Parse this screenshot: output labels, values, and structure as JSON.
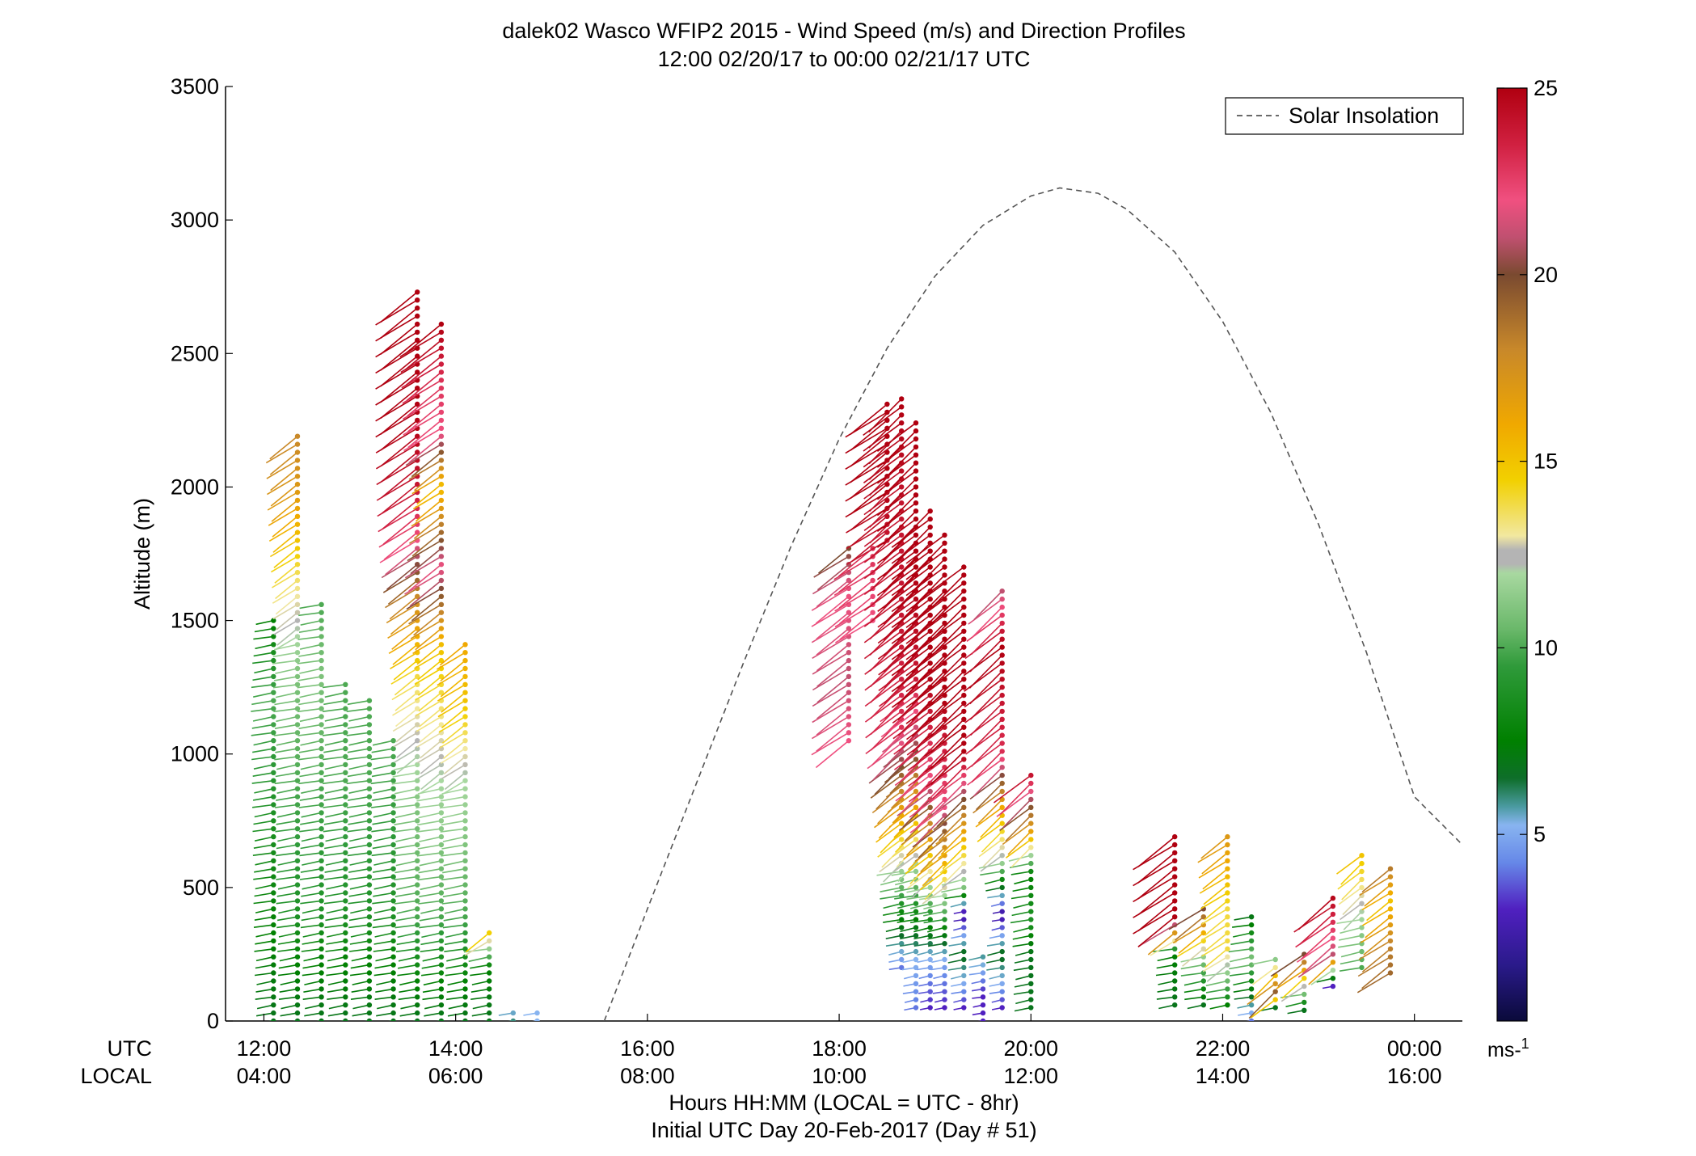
{
  "chart_data": {
    "type": "scatter",
    "title": "dalek02 Wasco WFIP2 2015 - Wind Speed (m/s) and Direction Profiles",
    "subtitle": "12:00 02/20/17 to 00:00 02/21/17  UTC",
    "ylabel": "Altitude (m)",
    "ylim": [
      0,
      3500
    ],
    "xlim_hours_utc": [
      11.6,
      24.5
    ],
    "yticks": [
      "0",
      "500",
      "1000",
      "1500",
      "2000",
      "2500",
      "3000",
      "3500"
    ],
    "xticks_utc": [
      "12:00",
      "14:00",
      "16:00",
      "18:00",
      "20:00",
      "22:00",
      "00:00"
    ],
    "xticks_local": [
      "04:00",
      "06:00",
      "08:00",
      "10:00",
      "12:00",
      "14:00",
      "16:00"
    ],
    "row_label_utc": "UTC",
    "row_label_local": "LOCAL",
    "xlabel_line1": "Hours HH:MM  (LOCAL = UTC - 8hr)",
    "xlabel_line2": "Initial UTC Day 20-Feb-2017 (Day # 51)",
    "legend": {
      "entry": "Solar Insolation",
      "position": "top-right",
      "style": "dashed",
      "color": "#555555"
    },
    "colorbar": {
      "ticks": [
        "5",
        "10",
        "15",
        "20",
        "25"
      ],
      "unit": "ms-1",
      "range": [
        0,
        25
      ]
    },
    "solar_insolation": {
      "x_hours": [
        15.55,
        16.0,
        16.5,
        17.0,
        17.5,
        18.0,
        18.5,
        19.0,
        19.5,
        20.0,
        20.3,
        20.7,
        21.0,
        21.5,
        22.0,
        22.5,
        23.0,
        23.5,
        24.0,
        24.5
      ],
      "y_alt": [
        0,
        420,
        880,
        1340,
        1780,
        2180,
        2520,
        2790,
        2980,
        3090,
        3120,
        3100,
        3040,
        2880,
        2620,
        2280,
        1860,
        1380,
        840,
        660
      ]
    },
    "profiles": [
      {
        "t": 12.1,
        "top": 1500,
        "ws": [
          [
            0,
            7
          ],
          [
            300,
            8
          ],
          [
            800,
            9
          ],
          [
            1200,
            10
          ],
          [
            1500,
            8
          ]
        ]
      },
      {
        "t": 12.35,
        "top": 2200,
        "ws": [
          [
            0,
            7
          ],
          [
            400,
            9
          ],
          [
            900,
            10
          ],
          [
            1300,
            11
          ],
          [
            1700,
            14
          ],
          [
            2000,
            17
          ],
          [
            2200,
            18
          ]
        ]
      },
      {
        "t": 12.6,
        "top": 1560,
        "ws": [
          [
            0,
            7
          ],
          [
            400,
            9
          ],
          [
            900,
            10
          ],
          [
            1300,
            11
          ],
          [
            1560,
            10
          ]
        ]
      },
      {
        "t": 12.85,
        "top": 1280,
        "ws": [
          [
            0,
            7
          ],
          [
            400,
            9
          ],
          [
            900,
            10
          ],
          [
            1280,
            10
          ]
        ]
      },
      {
        "t": 13.1,
        "top": 1200,
        "ws": [
          [
            0,
            7
          ],
          [
            400,
            9
          ],
          [
            900,
            10
          ],
          [
            1200,
            10
          ]
        ]
      },
      {
        "t": 13.35,
        "top": 1050,
        "ws": [
          [
            0,
            7
          ],
          [
            400,
            9
          ],
          [
            1050,
            10
          ]
        ]
      },
      {
        "t": 13.6,
        "top": 2750,
        "ws": [
          [
            0,
            7
          ],
          [
            400,
            10
          ],
          [
            800,
            11
          ],
          [
            1300,
            14
          ],
          [
            1600,
            18
          ],
          [
            1800,
            22
          ],
          [
            2000,
            24
          ],
          [
            2300,
            25
          ],
          [
            2750,
            25
          ]
        ]
      },
      {
        "t": 13.85,
        "top": 2610,
        "ws": [
          [
            0,
            7
          ],
          [
            400,
            10
          ],
          [
            900,
            12
          ],
          [
            1400,
            15
          ],
          [
            1700,
            22
          ],
          [
            2000,
            15
          ],
          [
            2200,
            22
          ],
          [
            2400,
            23
          ],
          [
            2610,
            25
          ]
        ]
      },
      {
        "t": 14.1,
        "top": 1410,
        "ws": [
          [
            0,
            7
          ],
          [
            400,
            10
          ],
          [
            900,
            12
          ],
          [
            1200,
            15
          ],
          [
            1410,
            16
          ]
        ]
      },
      {
        "t": 14.35,
        "top": 340,
        "ws": [
          [
            0,
            7
          ],
          [
            200,
            8
          ],
          [
            340,
            15
          ]
        ]
      },
      {
        "t": 14.6,
        "top": 50,
        "ws": [
          [
            0,
            6
          ],
          [
            50,
            5
          ]
        ]
      },
      {
        "t": 14.85,
        "top": 30,
        "ws": [
          [
            0,
            5
          ],
          [
            30,
            5
          ]
        ]
      },
      {
        "t": 18.1,
        "top": 1770,
        "ws": [
          [
            1050,
            22
          ],
          [
            1300,
            21
          ],
          [
            1600,
            22
          ],
          [
            1770,
            20
          ]
        ]
      },
      {
        "t": 18.35,
        "top": 1770,
        "ws": [
          [
            1500,
            22
          ],
          [
            1770,
            23
          ]
        ]
      },
      {
        "t": 18.5,
        "top": 2330,
        "ws": [
          [
            1800,
            24
          ],
          [
            2000,
            25
          ],
          [
            2330,
            25
          ]
        ]
      },
      {
        "t": 18.65,
        "top": 2330,
        "ws": [
          [
            200,
            4
          ],
          [
            1100,
            23
          ],
          [
            1500,
            24
          ],
          [
            1900,
            24
          ],
          [
            2330,
            25
          ]
        ]
      },
      {
        "t": 18.8,
        "top": 2260,
        "ws": [
          [
            50,
            4
          ],
          [
            230,
            5
          ],
          [
            1000,
            20
          ],
          [
            1300,
            24
          ],
          [
            1700,
            25
          ],
          [
            2260,
            25
          ]
        ]
      },
      {
        "t": 18.95,
        "top": 1910,
        "ws": [
          [
            50,
            3
          ],
          [
            240,
            5
          ],
          [
            900,
            22
          ],
          [
            1300,
            25
          ],
          [
            1910,
            25
          ]
        ]
      },
      {
        "t": 19.1,
        "top": 1840,
        "ws": [
          [
            50,
            3
          ],
          [
            240,
            5
          ],
          [
            800,
            22
          ],
          [
            1200,
            25
          ],
          [
            1840,
            25
          ]
        ]
      },
      {
        "t": 19.3,
        "top": 1700,
        "ws": [
          [
            50,
            3
          ],
          [
            250,
            7
          ],
          [
            400,
            2
          ],
          [
            500,
            11
          ],
          [
            700,
            16
          ],
          [
            1000,
            25
          ],
          [
            1700,
            25
          ]
        ]
      },
      {
        "t": 19.5,
        "top": 250,
        "ws": [
          [
            0,
            3
          ],
          [
            100,
            3
          ],
          [
            250,
            6
          ]
        ]
      },
      {
        "t": 19.7,
        "top": 1610,
        "ws": [
          [
            50,
            3
          ],
          [
            250,
            7
          ],
          [
            400,
            2
          ],
          [
            600,
            12
          ],
          [
            800,
            16
          ],
          [
            1000,
            23
          ],
          [
            1400,
            25
          ],
          [
            1610,
            21
          ]
        ]
      },
      {
        "t": 20.0,
        "top": 920,
        "ws": [
          [
            50,
            7
          ],
          [
            250,
            7
          ],
          [
            370,
            9
          ],
          [
            550,
            8
          ],
          [
            700,
            16
          ],
          [
            920,
            24
          ]
        ]
      },
      {
        "t": 21.5,
        "top": 690,
        "ws": [
          [
            60,
            7
          ],
          [
            260,
            8
          ],
          [
            390,
            25
          ],
          [
            690,
            25
          ]
        ]
      },
      {
        "t": 21.8,
        "top": 440,
        "ws": [
          [
            60,
            7
          ],
          [
            230,
            11
          ],
          [
            440,
            21
          ]
        ]
      },
      {
        "t": 22.05,
        "top": 690,
        "ws": [
          [
            60,
            8
          ],
          [
            270,
            14
          ],
          [
            420,
            14
          ],
          [
            690,
            17
          ]
        ]
      },
      {
        "t": 22.3,
        "top": 400,
        "ws": [
          [
            0,
            4
          ],
          [
            100,
            7
          ],
          [
            230,
            11
          ],
          [
            400,
            7
          ]
        ]
      },
      {
        "t": 22.55,
        "top": 250,
        "ws": [
          [
            50,
            7
          ],
          [
            100,
            20
          ],
          [
            250,
            10
          ]
        ]
      },
      {
        "t": 22.85,
        "top": 250,
        "ws": [
          [
            40,
            7
          ],
          [
            250,
            20
          ]
        ]
      },
      {
        "t": 23.15,
        "top": 480,
        "ws": [
          [
            130,
            3
          ],
          [
            250,
            21
          ],
          [
            480,
            25
          ]
        ]
      },
      {
        "t": 23.45,
        "top": 620,
        "ws": [
          [
            200,
            10
          ],
          [
            400,
            12
          ],
          [
            620,
            15
          ]
        ]
      },
      {
        "t": 23.75,
        "top": 590,
        "ws": [
          [
            180,
            19
          ],
          [
            300,
            18
          ],
          [
            450,
            15
          ],
          [
            590,
            19
          ]
        ]
      }
    ]
  }
}
